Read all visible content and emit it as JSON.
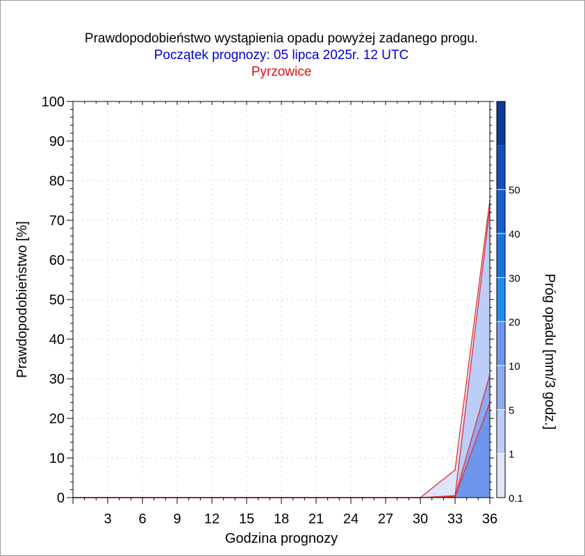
{
  "chart_data": {
    "type": "area",
    "title": "Prawdopodobieństwo wystąpienia opadu powyżej zadanego progu.",
    "subtitle": "Początek prognozy: 05 lipca 2025r. 12 UTC",
    "location": "Pyrzowice",
    "xlabel": "Godzina prognozy",
    "ylabel": "Prawdopodobieństwo [%]",
    "colorbar_label": "Próg opadu [mm/3 godz.]",
    "xlim": [
      0,
      36
    ],
    "ylim": [
      0,
      100
    ],
    "x_ticks": [
      3,
      6,
      9,
      12,
      15,
      18,
      21,
      24,
      27,
      30,
      33,
      36
    ],
    "y_ticks": [
      0,
      10,
      20,
      30,
      40,
      50,
      60,
      70,
      80,
      90,
      100
    ],
    "grid": true,
    "x": [
      0,
      3,
      6,
      9,
      12,
      15,
      18,
      21,
      24,
      27,
      30,
      33,
      36
    ],
    "series": [
      {
        "name": "0.1",
        "color": "#dde4fb",
        "values": [
          0,
          0,
          0,
          0,
          0,
          0,
          0,
          0,
          0,
          0,
          0,
          7,
          75
        ]
      },
      {
        "name": "1",
        "color": "#bccdf7",
        "values": [
          0,
          0,
          0,
          0,
          0,
          0,
          0,
          0,
          0,
          0,
          0,
          0.5,
          73
        ]
      },
      {
        "name": "5",
        "color": "#8eaaf0",
        "values": [
          0,
          0,
          0,
          0,
          0,
          0,
          0,
          0,
          0,
          0,
          0,
          0.3,
          31
        ]
      },
      {
        "name": "10",
        "color": "#6f96ee",
        "values": [
          0,
          0,
          0,
          0,
          0,
          0,
          0,
          0,
          0,
          0,
          0,
          0.2,
          24
        ]
      }
    ],
    "line_color": "#e03030",
    "colorbar": {
      "levels": [
        "0.1",
        "1",
        "5",
        "10",
        "20",
        "30",
        "40",
        "50"
      ],
      "colors": [
        "#e1e6fc",
        "#bccdf7",
        "#8eaaf0",
        "#6f96ee",
        "#1f8cf0",
        "#1772e0",
        "#1660d0",
        "#1450b8",
        "#0e3a98"
      ]
    },
    "title_colors": {
      "title": "#000000",
      "subtitle": "#0000d0",
      "location": "#e01010"
    }
  }
}
